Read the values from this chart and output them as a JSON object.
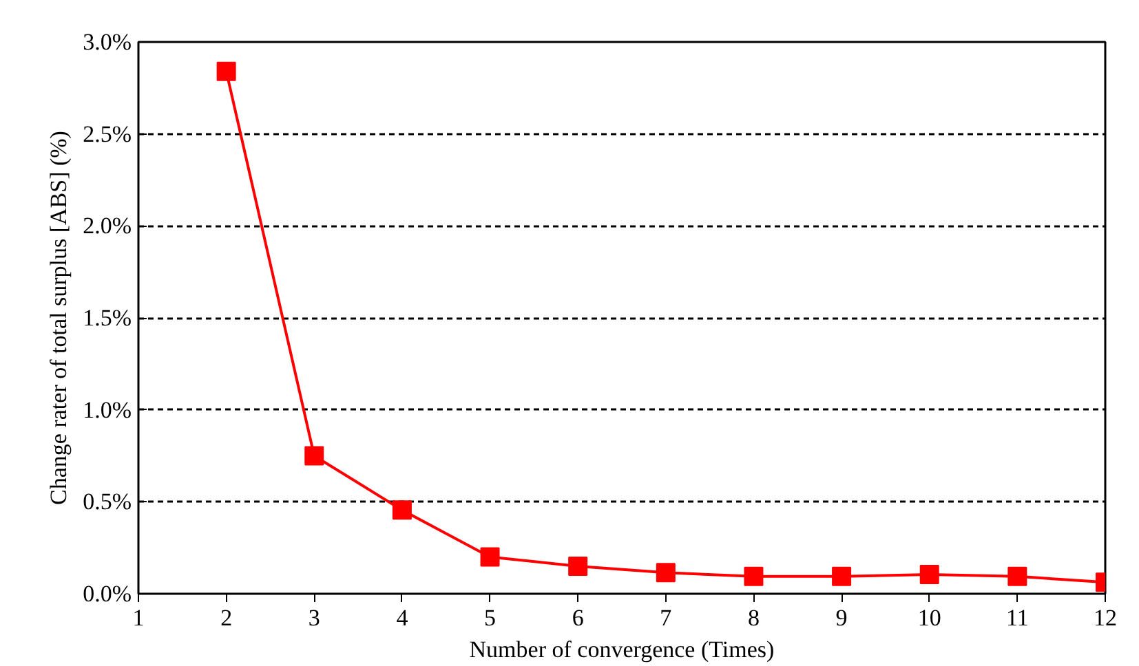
{
  "chart_data": {
    "type": "line",
    "xlabel": "Number of convergence (Times)",
    "ylabel": "Change rater of total surplus [ABS] (%)",
    "x": [
      2,
      3,
      4,
      5,
      6,
      7,
      8,
      9,
      10,
      11,
      12
    ],
    "series": [
      {
        "color": "#ff0000",
        "values": [
          2.84,
          0.75,
          0.455,
          0.2,
          0.15,
          0.115,
          0.094,
          0.094,
          0.105,
          0.094,
          0.063
        ]
      }
    ],
    "xlim": [
      1,
      12
    ],
    "xticks": [
      1,
      2,
      3,
      4,
      5,
      6,
      7,
      8,
      9,
      10,
      11,
      12
    ],
    "ylim": [
      0,
      3.0
    ],
    "yticks": [
      {
        "value": 0,
        "label": "0.0%"
      },
      {
        "value": 0.5,
        "label": "0.5%"
      },
      {
        "value": 1.0,
        "label": "1.0%"
      },
      {
        "value": 1.5,
        "label": "1.5%"
      },
      {
        "value": 2.0,
        "label": "2.0%"
      },
      {
        "value": 2.5,
        "label": "2.5%"
      },
      {
        "value": 3.0,
        "label": "3.0%"
      }
    ],
    "grid": "y",
    "marker": "square",
    "line_style": "solid"
  }
}
